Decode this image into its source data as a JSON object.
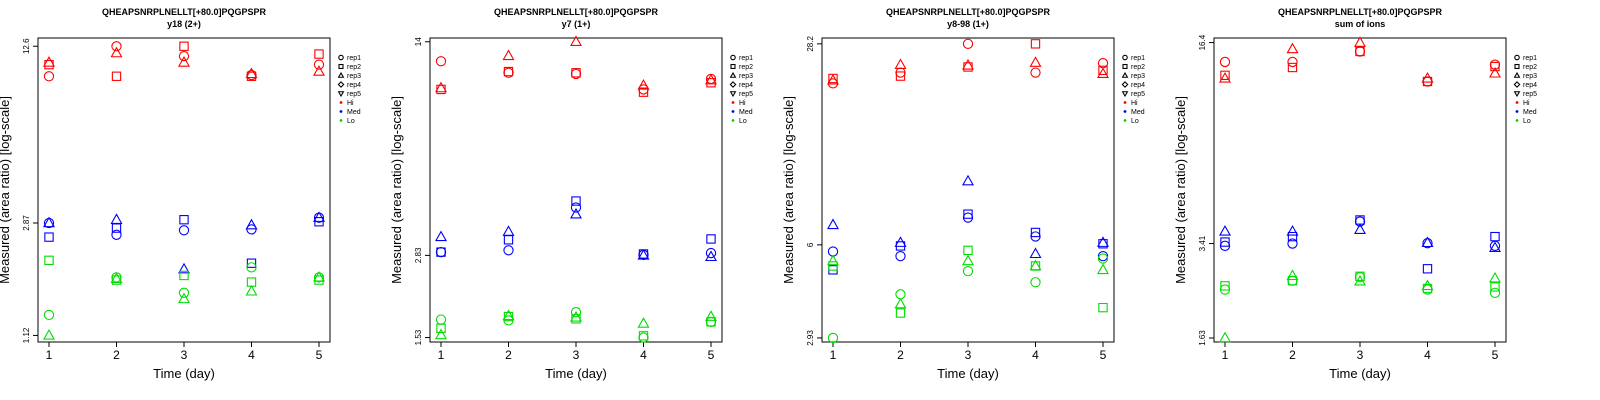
{
  "legend": {
    "reps": [
      {
        "label": "rep1",
        "shape": "circle"
      },
      {
        "label": "rep2",
        "shape": "square"
      },
      {
        "label": "rep3",
        "shape": "triangle-up"
      },
      {
        "label": "rep4",
        "shape": "diamond"
      },
      {
        "label": "rep5",
        "shape": "triangle-down"
      }
    ],
    "groups": [
      {
        "label": "Hi",
        "color": "#ff0000"
      },
      {
        "label": "Med",
        "color": "#0000ff"
      },
      {
        "label": "Lo",
        "color": "#00dd00"
      }
    ]
  },
  "chart_data": [
    {
      "type": "scatter",
      "title": "QHEAPSNRPLNELLT[+80.0]PQGPSPR",
      "subtitle": "y18 (2+)",
      "xlabel": "Time (day)",
      "ylabel": "Measured (area ratio) [log-scale]",
      "yscale": "log",
      "x_ticks": [
        "1",
        "2",
        "3",
        "4",
        "5"
      ],
      "y_ticks": [
        1.12,
        2.87,
        12.6
      ],
      "y_tick_labels": [
        "1.12",
        "2.87",
        "12.6"
      ],
      "ylim": [
        1.06,
        13.5
      ],
      "series": [
        {
          "rep": "rep1",
          "group": "Hi",
          "points": [
            [
              1,
              9.8
            ],
            [
              2,
              12.6
            ],
            [
              3,
              11.6
            ],
            [
              4,
              9.9
            ],
            [
              5,
              10.8
            ]
          ]
        },
        {
          "rep": "rep2",
          "group": "Hi",
          "points": [
            [
              1,
              10.8
            ],
            [
              2,
              9.8
            ],
            [
              3,
              12.6
            ],
            [
              4,
              9.8
            ],
            [
              5,
              11.8
            ]
          ]
        },
        {
          "rep": "rep3",
          "group": "Hi",
          "points": [
            [
              1,
              11.0
            ],
            [
              2,
              11.9
            ],
            [
              3,
              11.0
            ],
            [
              4,
              10.0
            ],
            [
              5,
              10.2
            ]
          ]
        },
        {
          "rep": "rep1",
          "group": "Med",
          "points": [
            [
              1,
              2.87
            ],
            [
              2,
              2.6
            ],
            [
              3,
              2.7
            ],
            [
              4,
              2.72
            ],
            [
              5,
              3.0
            ]
          ]
        },
        {
          "rep": "rep2",
          "group": "Med",
          "points": [
            [
              1,
              2.55
            ],
            [
              2,
              2.75
            ],
            [
              3,
              2.95
            ],
            [
              4,
              2.05
            ],
            [
              5,
              2.9
            ]
          ]
        },
        {
          "rep": "rep3",
          "group": "Med",
          "points": [
            [
              1,
              2.87
            ],
            [
              2,
              2.95
            ],
            [
              3,
              1.95
            ],
            [
              4,
              2.82
            ],
            [
              5,
              3.0
            ]
          ]
        },
        {
          "rep": "rep1",
          "group": "Lo",
          "points": [
            [
              1,
              1.33
            ],
            [
              2,
              1.82
            ],
            [
              3,
              1.6
            ],
            [
              4,
              1.98
            ],
            [
              5,
              1.82
            ]
          ]
        },
        {
          "rep": "rep2",
          "group": "Lo",
          "points": [
            [
              1,
              2.1
            ],
            [
              2,
              1.78
            ],
            [
              3,
              1.85
            ],
            [
              4,
              1.75
            ],
            [
              5,
              1.78
            ]
          ]
        },
        {
          "rep": "rep3",
          "group": "Lo",
          "points": [
            [
              1,
              1.12
            ],
            [
              2,
              1.8
            ],
            [
              3,
              1.52
            ],
            [
              4,
              1.62
            ],
            [
              5,
              1.82
            ]
          ]
        }
      ]
    },
    {
      "type": "scatter",
      "title": "QHEAPSNRPLNELLT[+80.0]PQGPSPR",
      "subtitle": "y7 (1+)",
      "xlabel": "Time (day)",
      "ylabel": "Measured (area ratio) [log-scale]",
      "yscale": "log",
      "x_ticks": [
        "1",
        "2",
        "3",
        "4",
        "5"
      ],
      "y_ticks": [
        1.53,
        2.83,
        14
      ],
      "y_tick_labels": [
        "1.53",
        "2.83",
        "14"
      ],
      "ylim": [
        1.48,
        14.4
      ],
      "series": [
        {
          "rep": "rep1",
          "group": "Hi",
          "points": [
            [
              1,
              12.1
            ],
            [
              2,
              11.1
            ],
            [
              3,
              11.0
            ],
            [
              4,
              9.8
            ],
            [
              5,
              10.6
            ]
          ]
        },
        {
          "rep": "rep2",
          "group": "Hi",
          "points": [
            [
              1,
              9.8
            ],
            [
              2,
              11.2
            ],
            [
              3,
              11.1
            ],
            [
              4,
              9.6
            ],
            [
              5,
              10.3
            ]
          ]
        },
        {
          "rep": "rep3",
          "group": "Hi",
          "points": [
            [
              1,
              9.9
            ],
            [
              2,
              12.6
            ],
            [
              3,
              14.0
            ],
            [
              4,
              10.1
            ],
            [
              5,
              10.5
            ]
          ]
        },
        {
          "rep": "rep1",
          "group": "Med",
          "points": [
            [
              1,
              2.9
            ],
            [
              2,
              2.94
            ],
            [
              3,
              4.05
            ],
            [
              4,
              2.84
            ],
            [
              5,
              2.88
            ]
          ]
        },
        {
          "rep": "rep2",
          "group": "Med",
          "points": [
            [
              1,
              2.9
            ],
            [
              2,
              3.18
            ],
            [
              3,
              4.25
            ],
            [
              4,
              2.86
            ],
            [
              5,
              3.2
            ]
          ]
        },
        {
          "rep": "rep3",
          "group": "Med",
          "points": [
            [
              1,
              3.25
            ],
            [
              2,
              3.38
            ],
            [
              3,
              3.85
            ],
            [
              4,
              2.83
            ],
            [
              5,
              2.8
            ]
          ]
        },
        {
          "rep": "rep1",
          "group": "Lo",
          "points": [
            [
              1,
              1.75
            ],
            [
              2,
              1.74
            ],
            [
              3,
              1.85
            ],
            [
              4,
              1.53
            ],
            [
              5,
              1.72
            ]
          ]
        },
        {
          "rep": "rep2",
          "group": "Lo",
          "points": [
            [
              1,
              1.64
            ],
            [
              2,
              1.79
            ],
            [
              3,
              1.76
            ],
            [
              4,
              1.55
            ],
            [
              5,
              1.72
            ]
          ]
        },
        {
          "rep": "rep3",
          "group": "Lo",
          "points": [
            [
              1,
              1.56
            ],
            [
              2,
              1.8
            ],
            [
              3,
              1.78
            ],
            [
              4,
              1.7
            ],
            [
              5,
              1.79
            ]
          ]
        }
      ]
    },
    {
      "type": "scatter",
      "title": "QHEAPSNRPLNELLT[+80.0]PQGPSPR",
      "subtitle": "y8-98 (1+)",
      "xlabel": "Time (day)",
      "ylabel": "Measured (area ratio) [log-scale]",
      "yscale": "log",
      "x_ticks": [
        "1",
        "2",
        "3",
        "4",
        "5"
      ],
      "y_ticks": [
        2.93,
        6,
        28.2
      ],
      "y_tick_labels": [
        "2.93",
        "6",
        "28.2"
      ],
      "ylim": [
        2.84,
        29.5
      ],
      "series": [
        {
          "rep": "rep1",
          "group": "Hi",
          "points": [
            [
              1,
              20.8
            ],
            [
              2,
              22.6
            ],
            [
              3,
              28.2
            ],
            [
              4,
              22.6
            ],
            [
              5,
              24.3
            ]
          ]
        },
        {
          "rep": "rep2",
          "group": "Hi",
          "points": [
            [
              1,
              21.6
            ],
            [
              2,
              22.0
            ],
            [
              3,
              23.6
            ],
            [
              4,
              28.2
            ],
            [
              5,
              23.0
            ]
          ]
        },
        {
          "rep": "rep3",
          "group": "Hi",
          "points": [
            [
              1,
              21.3
            ],
            [
              2,
              24.0
            ],
            [
              3,
              23.9
            ],
            [
              4,
              24.4
            ],
            [
              5,
              22.4
            ]
          ]
        },
        {
          "rep": "rep1",
          "group": "Med",
          "points": [
            [
              1,
              5.7
            ],
            [
              2,
              5.5
            ],
            [
              3,
              7.4
            ],
            [
              4,
              6.4
            ],
            [
              5,
              5.5
            ]
          ]
        },
        {
          "rep": "rep2",
          "group": "Med",
          "points": [
            [
              1,
              4.95
            ],
            [
              2,
              5.95
            ],
            [
              3,
              7.6
            ],
            [
              4,
              6.6
            ],
            [
              5,
              6.05
            ]
          ]
        },
        {
          "rep": "rep3",
          "group": "Med",
          "points": [
            [
              1,
              7.0
            ],
            [
              2,
              6.1
            ],
            [
              3,
              9.8
            ],
            [
              4,
              5.6
            ],
            [
              5,
              6.1
            ]
          ]
        },
        {
          "rep": "rep1",
          "group": "Lo",
          "points": [
            [
              1,
              2.93
            ],
            [
              2,
              4.1
            ],
            [
              3,
              4.9
            ],
            [
              4,
              4.5
            ],
            [
              5,
              5.4
            ]
          ]
        },
        {
          "rep": "rep2",
          "group": "Lo",
          "points": [
            [
              1,
              5.1
            ],
            [
              2,
              3.55
            ],
            [
              3,
              5.75
            ],
            [
              4,
              5.1
            ],
            [
              5,
              3.7
            ]
          ]
        },
        {
          "rep": "rep3",
          "group": "Lo",
          "points": [
            [
              1,
              5.3
            ],
            [
              2,
              3.8
            ],
            [
              3,
              5.3
            ],
            [
              4,
              5.1
            ],
            [
              5,
              4.95
            ]
          ]
        }
      ]
    },
    {
      "type": "scatter",
      "title": "QHEAPSNRPLNELLT[+80.0]PQGPSPR",
      "subtitle": "sum of ions",
      "xlabel": "Time (day)",
      "ylabel": "Measured (area ratio) [log-scale]",
      "yscale": "log",
      "x_ticks": [
        "1",
        "2",
        "3",
        "4",
        "5"
      ],
      "y_ticks": [
        1.63,
        3.41,
        16.4
      ],
      "y_tick_labels": [
        "1.63",
        "3.41",
        "16.4"
      ],
      "ylim": [
        1.58,
        17.0
      ],
      "series": [
        {
          "rep": "rep1",
          "group": "Hi",
          "points": [
            [
              1,
              14.1
            ],
            [
              2,
              14.1
            ],
            [
              3,
              15.3
            ],
            [
              4,
              12.1
            ],
            [
              5,
              13.8
            ]
          ]
        },
        {
          "rep": "rep2",
          "group": "Hi",
          "points": [
            [
              1,
              12.7
            ],
            [
              2,
              13.5
            ],
            [
              3,
              15.3
            ],
            [
              4,
              12.1
            ],
            [
              5,
              13.6
            ]
          ]
        },
        {
          "rep": "rep3",
          "group": "Hi",
          "points": [
            [
              1,
              12.4
            ],
            [
              2,
              15.6
            ],
            [
              3,
              16.4
            ],
            [
              4,
              12.4
            ],
            [
              5,
              12.9
            ]
          ]
        },
        {
          "rep": "rep1",
          "group": "Med",
          "points": [
            [
              1,
              3.35
            ],
            [
              2,
              3.41
            ],
            [
              3,
              4.05
            ],
            [
              4,
              3.42
            ],
            [
              5,
              3.35
            ]
          ]
        },
        {
          "rep": "rep2",
          "group": "Med",
          "points": [
            [
              1,
              3.45
            ],
            [
              2,
              3.6
            ],
            [
              3,
              4.1
            ],
            [
              4,
              2.8
            ],
            [
              5,
              3.6
            ]
          ]
        },
        {
          "rep": "rep3",
          "group": "Med",
          "points": [
            [
              1,
              3.75
            ],
            [
              2,
              3.75
            ],
            [
              3,
              3.8
            ],
            [
              4,
              3.43
            ],
            [
              5,
              3.3
            ]
          ]
        },
        {
          "rep": "rep1",
          "group": "Lo",
          "points": [
            [
              1,
              2.38
            ],
            [
              2,
              2.55
            ],
            [
              3,
              2.62
            ],
            [
              4,
              2.38
            ],
            [
              5,
              2.32
            ]
          ]
        },
        {
          "rep": "rep2",
          "group": "Lo",
          "points": [
            [
              1,
              2.45
            ],
            [
              2,
              2.55
            ],
            [
              3,
              2.64
            ],
            [
              4,
              2.4
            ],
            [
              5,
              2.43
            ]
          ]
        },
        {
          "rep": "rep3",
          "group": "Lo",
          "points": [
            [
              1,
              1.63
            ],
            [
              2,
              2.65
            ],
            [
              3,
              2.54
            ],
            [
              4,
              2.45
            ],
            [
              5,
              2.6
            ]
          ]
        }
      ]
    }
  ]
}
